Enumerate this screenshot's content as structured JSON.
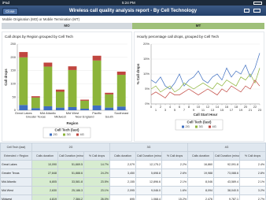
{
  "status_bar": {
    "carrier": "iPad",
    "time": "5:24 PM"
  },
  "nav": {
    "close": "Close",
    "title": "Wireless call quality analysis report - By Cell Technology"
  },
  "filter": {
    "label": "Mobile Origination (MO) or Mobile Termination (MT)",
    "options": [
      "MO",
      "MT"
    ]
  },
  "chart_data": [
    {
      "type": "bar",
      "stacked": true,
      "title": "Call drops by Region grouped by Cell Tech",
      "x_label": "Region",
      "y_label": "Call drops",
      "legend_title": "Cell Tech (last)",
      "categories": [
        "Great Lakes",
        "Greater Texas",
        "Mid Atlantic",
        "Midwest",
        "Mid West",
        "New England",
        "Pacific",
        "South",
        "Southeast"
      ],
      "series": [
        {
          "name": "2G",
          "color": "#3f6fc1",
          "values": [
            20,
            8,
            15,
            10,
            12,
            6,
            18,
            10,
            14
          ]
        },
        {
          "name": "3G",
          "color": "#8cb43a",
          "values": [
            180,
            40,
            150,
            60,
            140,
            30,
            170,
            50,
            120
          ]
        },
        {
          "name": "4G",
          "color": "#c0463f",
          "values": [
            20,
            5,
            15,
            8,
            14,
            4,
            18,
            6,
            12
          ]
        }
      ],
      "ylim": [
        0,
        250
      ],
      "yticks": [
        0,
        50,
        100,
        150,
        200,
        250
      ],
      "grid": true
    },
    {
      "type": "line",
      "title": "Hourly percentage call drops, grouped by Cell Tech",
      "x_label": "Call Start Hour",
      "y_label": "% Call drops",
      "legend_title": "Cell Tech (last)",
      "x": [
        0,
        1,
        2,
        3,
        4,
        5,
        6,
        7,
        8,
        9,
        10,
        11,
        12,
        13,
        14,
        15,
        16,
        17,
        18,
        19,
        20,
        21,
        22,
        23
      ],
      "xlim": [
        0,
        23
      ],
      "xticks": [
        0,
        1,
        2,
        3,
        4,
        5,
        6,
        7,
        8,
        9,
        10,
        11,
        12,
        13,
        14,
        15,
        16,
        17,
        18,
        19,
        20,
        21,
        22,
        23
      ],
      "series": [
        {
          "name": "2G",
          "color": "#3f6fc1",
          "values": [
            8,
            7,
            9,
            6,
            5,
            7,
            10,
            6,
            8,
            9,
            11,
            8,
            7,
            9,
            10,
            8,
            12,
            9,
            11,
            10,
            13,
            9,
            12,
            17
          ]
        },
        {
          "name": "3G",
          "color": "#8cb43a",
          "values": [
            5,
            6,
            4,
            5,
            6,
            4,
            5,
            7,
            6,
            5,
            6,
            7,
            6,
            5,
            7,
            6,
            8,
            7,
            6,
            9,
            8,
            10,
            7,
            12
          ]
        },
        {
          "name": "4G",
          "color": "#c0463f",
          "values": [
            3,
            4,
            3,
            2,
            4,
            3,
            3,
            4,
            5,
            4,
            3,
            4,
            5,
            4,
            3,
            5,
            4,
            6,
            5,
            4,
            6,
            5,
            8,
            6
          ]
        }
      ],
      "ylim": [
        0,
        20
      ],
      "yticks": [
        {
          "value": 0,
          "label": "0%"
        },
        {
          "value": 5,
          "label": "5%"
        },
        {
          "value": 10,
          "label": "10%"
        },
        {
          "value": 15,
          "label": "15%"
        },
        {
          "value": 20,
          "label": "20%"
        }
      ],
      "grid": true
    }
  ],
  "table": {
    "group_header": "Cell Tech (last)",
    "groups": [
      "2G",
      "3G",
      "4G"
    ],
    "columns": [
      "Extended > Region",
      "Calls duration",
      "Call Duration (minutes)",
      "% Call drops",
      "Calls duration",
      "Call Duration (minutes)",
      "% Call drops",
      "Calls duration",
      "Call Duration (minutes)",
      "% Call drops"
    ],
    "rows": [
      [
        "Great Lakes",
        "10,090",
        "51,669.5",
        "14.7%",
        "2,079",
        "12,175.2",
        "2.2%",
        "16,860",
        "92,091.8",
        "2.4%"
      ],
      [
        "Greater Texas",
        "27,848",
        "51,888.6",
        "24.2%",
        "3,450",
        "5,698.8",
        "2.6%",
        "19,988",
        "73,088.6",
        "2.8%"
      ],
      [
        "Mid Atlantic",
        "6,805",
        "33,581.8",
        "23.5%",
        "2,155",
        "12,896.6",
        "2.1%",
        "8,046",
        "43,589.4",
        "2.1%"
      ],
      [
        "Mid West",
        "2,630",
        "25,186.3",
        "23.1%",
        "2,095",
        "9,046.0",
        "1.6%",
        "8,094",
        "38,040.5",
        "3.2%"
      ],
      [
        "Midwest",
        "4,819",
        "7,384.2",
        "26.0%",
        "695",
        "1,068.4",
        "15.2%",
        "2,476",
        "9,787.1",
        "2.7%"
      ]
    ]
  }
}
